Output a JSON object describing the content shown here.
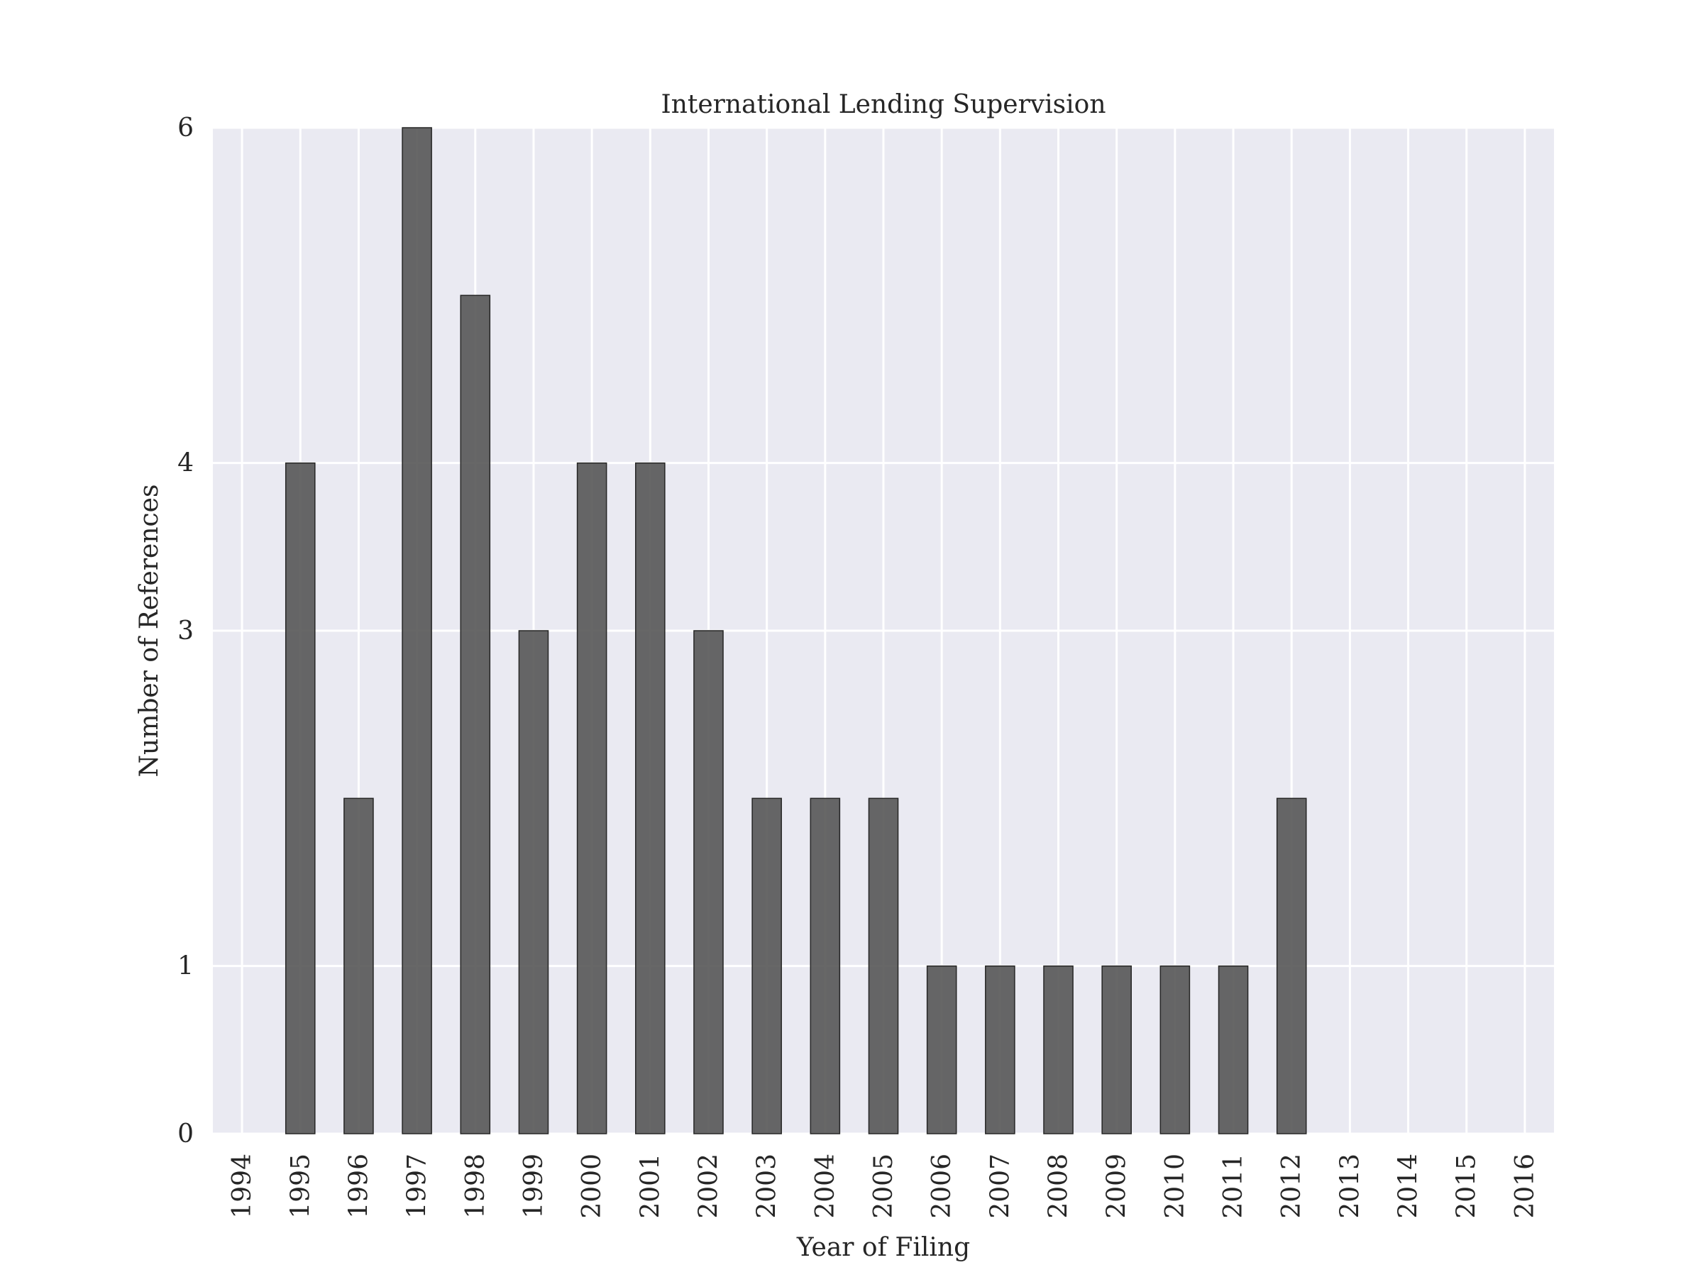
{
  "chart_data": {
    "type": "bar",
    "title": "International Lending Supervision",
    "xlabel": "Year of Filing",
    "ylabel": "Number of References",
    "categories": [
      "1994",
      "1995",
      "1996",
      "1997",
      "1998",
      "1999",
      "2000",
      "2001",
      "2002",
      "2003",
      "2004",
      "2005",
      "2006",
      "2007",
      "2008",
      "2009",
      "2010",
      "2011",
      "2012",
      "2013",
      "2014",
      "2015",
      "2016"
    ],
    "values": [
      0,
      4,
      2,
      6,
      5,
      3,
      4,
      4,
      3,
      2,
      2,
      2,
      1,
      1,
      1,
      1,
      1,
      1,
      2,
      0,
      0,
      0,
      0
    ],
    "ylim": [
      0,
      6
    ],
    "yticks": [
      0,
      1,
      3,
      4,
      6
    ],
    "ytick_labels": [
      "0",
      "1",
      "3",
      "4",
      "6"
    ],
    "grid": true,
    "legend": "none",
    "colors": {
      "plot_background": "#eaeaf2",
      "grid": "#ffffff",
      "bar_fill": "#525252",
      "bar_edge": "#262626",
      "text": "#262626"
    }
  }
}
